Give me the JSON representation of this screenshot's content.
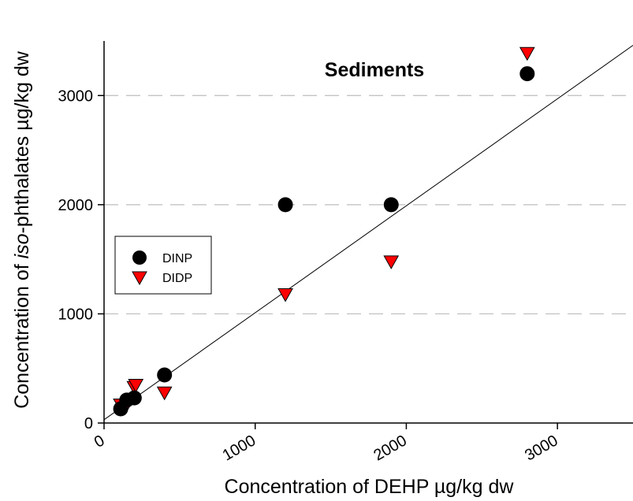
{
  "chart_data": {
    "type": "scatter",
    "title": "Sediments",
    "xlabel": "Concentration of DEHP µg/kg dw",
    "ylabel_parts": [
      "Concentration of ",
      "iso",
      "-phthalates µg/kg dw"
    ],
    "xlim": [
      0,
      3500
    ],
    "ylim": [
      0,
      3500
    ],
    "x_ticks": [
      0,
      1000,
      2000,
      3000
    ],
    "y_ticks": [
      0,
      1000,
      2000,
      3000
    ],
    "grid": "horizontal dashed at 1000, 2000, 3000",
    "legend_position": "left-middle",
    "series": [
      {
        "name": "DINP",
        "marker": "circle",
        "color": "#000000",
        "points": [
          [
            110,
            130
          ],
          [
            150,
            210
          ],
          [
            200,
            230
          ],
          [
            400,
            440
          ],
          [
            1200,
            2000
          ],
          [
            1900,
            2000
          ],
          [
            2800,
            3200
          ]
        ]
      },
      {
        "name": "DIDP",
        "marker": "triangle-down",
        "color": "#ff0000",
        "points": [
          [
            110,
            170
          ],
          [
            150,
            170
          ],
          [
            200,
            330
          ],
          [
            210,
            350
          ],
          [
            400,
            280
          ],
          [
            1200,
            1180
          ],
          [
            1900,
            1480
          ],
          [
            2800,
            3390
          ]
        ]
      }
    ],
    "fit_line": {
      "x": [
        0,
        3500
      ],
      "y": [
        30,
        3460
      ]
    }
  }
}
